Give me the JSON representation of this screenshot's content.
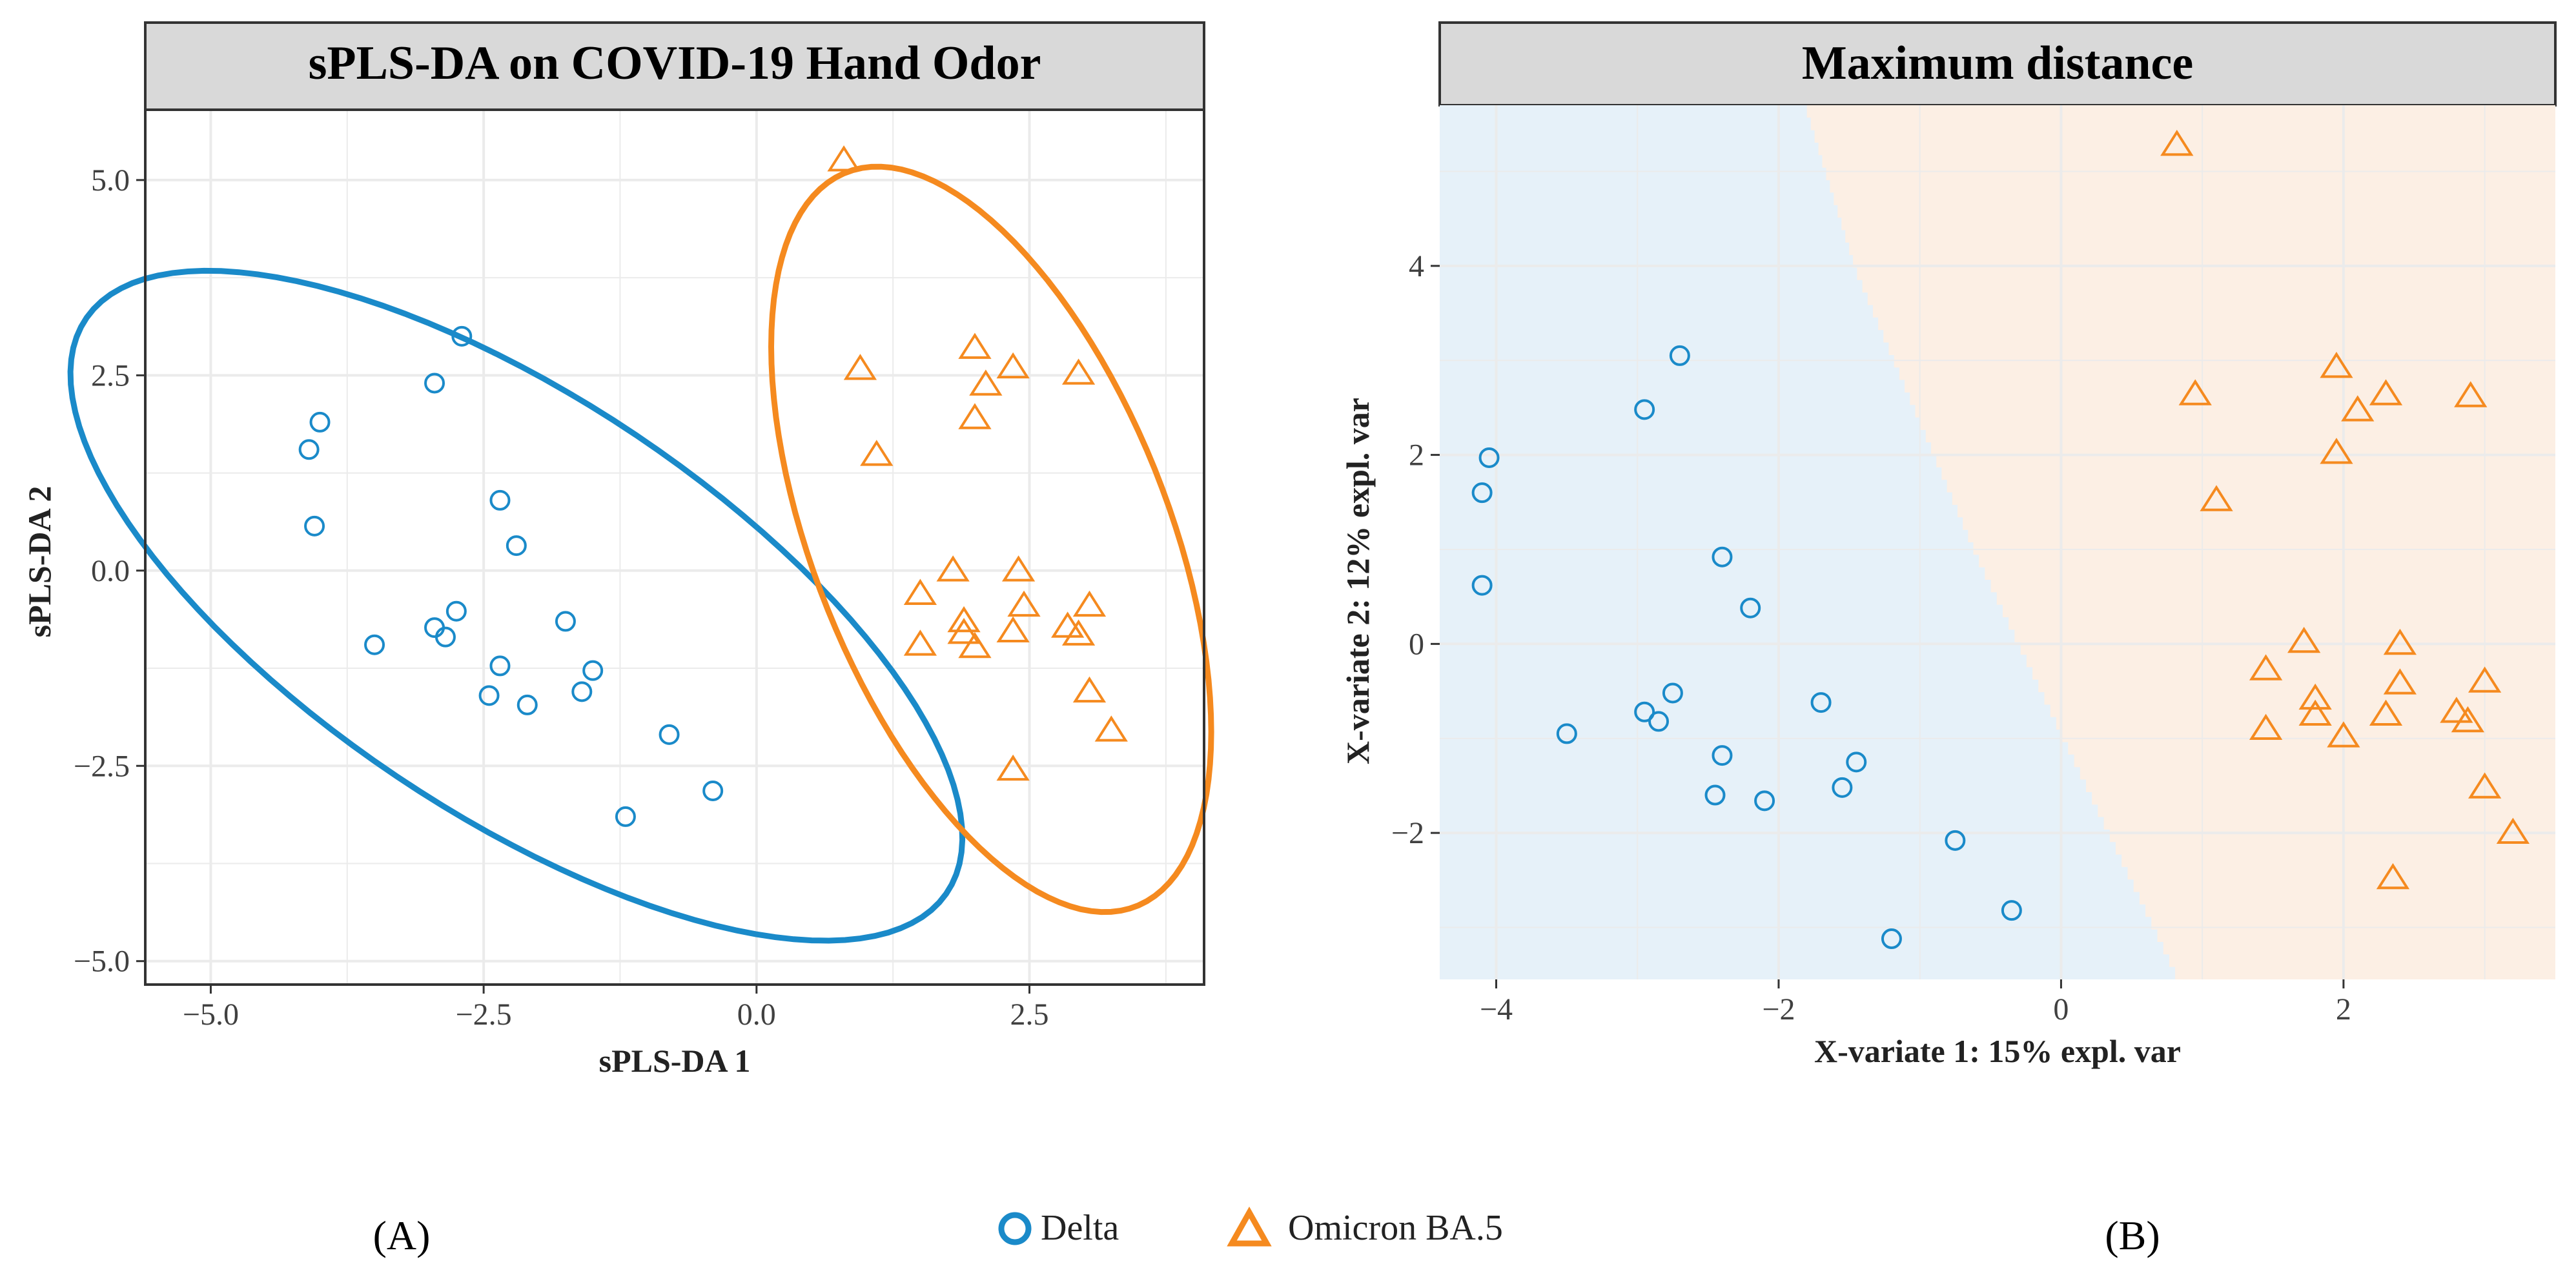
{
  "colors": {
    "delta": "#1a8ac9",
    "omicron": "#f58a1f",
    "delta_region": "#e6f1f9",
    "omicron_region": "#fcefe4",
    "strip": "#d9d9d9",
    "grid": "#ebebeb",
    "frame": "#333333"
  },
  "legend": {
    "delta": "Delta",
    "omicron": "Omicron BA.5"
  },
  "panel_labels": {
    "a": "(A)",
    "b": "(B)"
  },
  "chart_data": [
    {
      "type": "scatter",
      "title": "sPLS-DA on COVID-19 Hand Odor",
      "xlabel": "sPLS-DA 1",
      "ylabel": "sPLS-DA 2",
      "xlim": [
        -5.6,
        4.1
      ],
      "ylim": [
        -5.3,
        5.9
      ],
      "xticks": [
        -5.0,
        -2.5,
        0.0,
        2.5
      ],
      "xtick_labels": [
        "−5.0",
        "−2.5",
        "0.0",
        "2.5"
      ],
      "yticks": [
        -5.0,
        -2.5,
        0.0,
        2.5,
        5.0
      ],
      "ytick_labels": [
        "−5.0",
        "−2.5",
        "0.0",
        "2.5",
        "5.0"
      ],
      "grid": true,
      "series": [
        {
          "name": "Delta",
          "marker": "circle",
          "ellipse": {
            "cx": -2.2,
            "cy": -0.45,
            "rx": 5.45,
            "ry": 2.32,
            "angle_deg": -47
          },
          "points": [
            [
              -2.7,
              3.0
            ],
            [
              -2.95,
              2.4
            ],
            [
              -4.0,
              1.9
            ],
            [
              -4.1,
              1.55
            ],
            [
              -4.05,
              0.57
            ],
            [
              -2.35,
              0.9
            ],
            [
              -2.2,
              0.32
            ],
            [
              -2.75,
              -0.52
            ],
            [
              -2.95,
              -0.73
            ],
            [
              -2.85,
              -0.85
            ],
            [
              -1.75,
              -0.65
            ],
            [
              -3.5,
              -0.95
            ],
            [
              -2.35,
              -1.22
            ],
            [
              -1.5,
              -1.28
            ],
            [
              -1.6,
              -1.55
            ],
            [
              -2.45,
              -1.6
            ],
            [
              -2.1,
              -1.72
            ],
            [
              -0.8,
              -2.1
            ],
            [
              -0.4,
              -2.82
            ],
            [
              -1.2,
              -3.15
            ]
          ]
        },
        {
          "name": "Omicron BA.5",
          "marker": "triangle",
          "ellipse": {
            "cx": 2.15,
            "cy": 0.4,
            "rx": 4.9,
            "ry": 1.68,
            "angle_deg": -76
          },
          "points": [
            [
              0.8,
              5.25
            ],
            [
              0.95,
              2.58
            ],
            [
              1.1,
              1.48
            ],
            [
              2.0,
              2.85
            ],
            [
              2.1,
              2.38
            ],
            [
              2.35,
              2.6
            ],
            [
              2.95,
              2.52
            ],
            [
              2.0,
              1.95
            ],
            [
              1.8,
              0.0
            ],
            [
              2.4,
              0.0
            ],
            [
              1.5,
              -0.3
            ],
            [
              2.45,
              -0.45
            ],
            [
              3.05,
              -0.45
            ],
            [
              1.9,
              -0.65
            ],
            [
              1.9,
              -0.8
            ],
            [
              2.35,
              -0.78
            ],
            [
              2.85,
              -0.72
            ],
            [
              2.95,
              -0.82
            ],
            [
              2.0,
              -0.98
            ],
            [
              1.5,
              -0.95
            ],
            [
              3.05,
              -1.55
            ],
            [
              3.25,
              -2.05
            ],
            [
              2.35,
              -2.55
            ]
          ]
        }
      ]
    },
    {
      "type": "scatter",
      "title": "Maximum distance",
      "xlabel": "X-variate 1: 15% expl. var",
      "ylabel": "X-variate 2: 12% expl. var",
      "xlim": [
        -4.4,
        3.5
      ],
      "ylim": [
        -3.55,
        5.7
      ],
      "xticks": [
        -4,
        -2,
        0,
        2
      ],
      "xtick_labels": [
        "−4",
        "−2",
        "0",
        "2"
      ],
      "yticks": [
        -2,
        0,
        2,
        4
      ],
      "yticks_labels_note": "",
      "ytick_labels": [
        "−2",
        "0",
        "2",
        "4"
      ],
      "grid": true,
      "decision_boundary": [
        [
          -1.8,
          5.7
        ],
        [
          -1.45,
          4.0
        ],
        [
          -0.6,
          1.0
        ],
        [
          0.85,
          -3.55
        ]
      ],
      "regions": [
        "Delta",
        "Omicron BA.5"
      ],
      "series": [
        {
          "name": "Delta",
          "marker": "circle",
          "points": [
            [
              -2.7,
              3.05
            ],
            [
              -2.95,
              2.48
            ],
            [
              -4.05,
              1.97
            ],
            [
              -4.1,
              1.6
            ],
            [
              -4.1,
              0.62
            ],
            [
              -2.4,
              0.92
            ],
            [
              -2.2,
              0.38
            ],
            [
              -2.75,
              -0.52
            ],
            [
              -2.95,
              -0.72
            ],
            [
              -2.85,
              -0.82
            ],
            [
              -1.7,
              -0.62
            ],
            [
              -3.5,
              -0.95
            ],
            [
              -2.4,
              -1.18
            ],
            [
              -1.45,
              -1.25
            ],
            [
              -1.55,
              -1.52
            ],
            [
              -2.45,
              -1.6
            ],
            [
              -2.1,
              -1.66
            ],
            [
              -0.75,
              -2.08
            ],
            [
              -0.35,
              -2.82
            ],
            [
              -1.2,
              -3.12
            ]
          ]
        },
        {
          "name": "Omicron BA.5",
          "marker": "triangle",
          "points": [
            [
              0.82,
              5.28
            ],
            [
              0.95,
              2.64
            ],
            [
              1.1,
              1.52
            ],
            [
              1.95,
              2.93
            ],
            [
              2.1,
              2.47
            ],
            [
              2.3,
              2.64
            ],
            [
              2.9,
              2.62
            ],
            [
              1.95,
              2.02
            ],
            [
              1.72,
              0.02
            ],
            [
              2.4,
              0.0
            ],
            [
              1.45,
              -0.27
            ],
            [
              2.4,
              -0.42
            ],
            [
              3.0,
              -0.4
            ],
            [
              1.8,
              -0.58
            ],
            [
              1.8,
              -0.75
            ],
            [
              2.3,
              -0.75
            ],
            [
              2.8,
              -0.72
            ],
            [
              2.88,
              -0.82
            ],
            [
              2.0,
              -0.98
            ],
            [
              1.45,
              -0.9
            ],
            [
              3.0,
              -1.52
            ],
            [
              3.2,
              -2.0
            ],
            [
              2.35,
              -2.48
            ]
          ]
        }
      ]
    }
  ]
}
